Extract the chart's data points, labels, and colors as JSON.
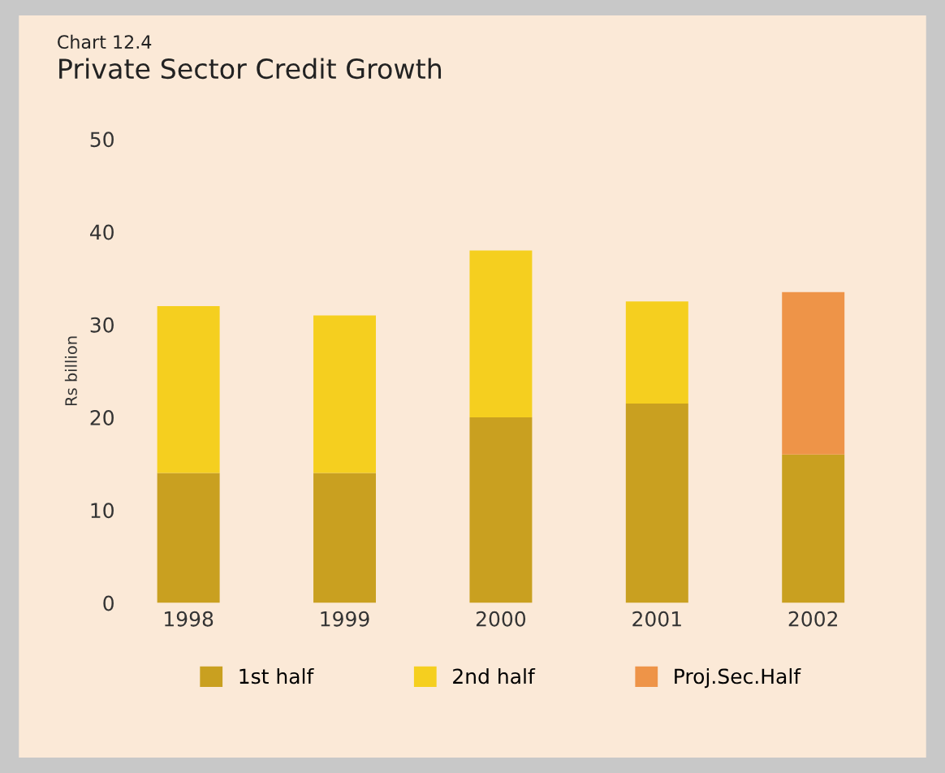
{
  "chart_data": {
    "type": "bar",
    "title": "Private Sector Credit Growth",
    "subtitle": "Chart 12.4",
    "ylabel": "Rs billion",
    "categories": [
      "1998",
      "1999",
      "2000",
      "2001",
      "2002"
    ],
    "stacked": true,
    "ylim": [
      0,
      50
    ],
    "yticks": [
      0,
      10,
      20,
      30,
      40,
      50
    ],
    "grid": false,
    "legend": "bottom",
    "series": [
      {
        "name": "1st half",
        "color": "#c9a020",
        "values": [
          14,
          14,
          20,
          21.5,
          16
        ]
      },
      {
        "name": "2nd half",
        "color": "#f5cf1f",
        "values": [
          18,
          17,
          18,
          11,
          null
        ]
      },
      {
        "name": "Proj.Sec.Half",
        "color": "#ee9448",
        "values": [
          null,
          null,
          null,
          null,
          17.5
        ]
      }
    ]
  }
}
